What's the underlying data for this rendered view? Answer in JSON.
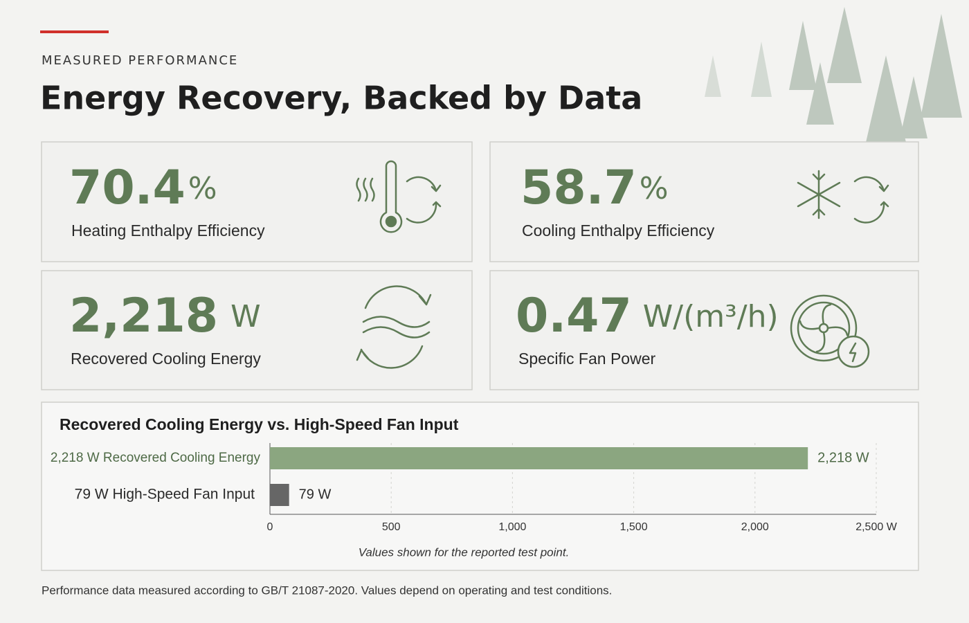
{
  "header": {
    "eyebrow": "MEASURED PERFORMANCE",
    "title": "Energy Recovery, Backed by Data"
  },
  "cards": [
    {
      "value": "70.4",
      "unit": "%",
      "label": "Heating Enthalpy Efficiency"
    },
    {
      "value": "58.7",
      "unit": "%",
      "label": "Cooling Enthalpy Efficiency"
    },
    {
      "value": "2,218",
      "unit": "W",
      "label": "Recovered Cooling Energy"
    },
    {
      "value": "0.47",
      "unit": "W/(m³/h)",
      "label": "Specific Fan Power"
    }
  ],
  "chart_data": {
    "type": "bar",
    "orientation": "horizontal",
    "title": "Recovered Cooling Energy vs. High-Speed Fan Input",
    "categories": [
      "2,218 W Recovered Cooling Energy",
      "79 W High-Speed Fan Input"
    ],
    "values": [
      2218,
      79
    ],
    "value_labels": [
      "2,218 W",
      "79 W"
    ],
    "colors": [
      "#8ba680",
      "#666666"
    ],
    "xlim": [
      0,
      2500
    ],
    "xticks": [
      0,
      500,
      {
        "value": 1000,
        "label": "1,000"
      },
      {
        "value": 1500,
        "label": "1,500"
      },
      {
        "value": 2000,
        "label": "2,000"
      },
      {
        "value": 2500,
        "label": "2,500 W"
      }
    ],
    "grid": true,
    "caption": "Values shown for the reported test point."
  },
  "footnote": "Performance data measured according to GB/T 21087-2020. Values depend on operating and test conditions."
}
